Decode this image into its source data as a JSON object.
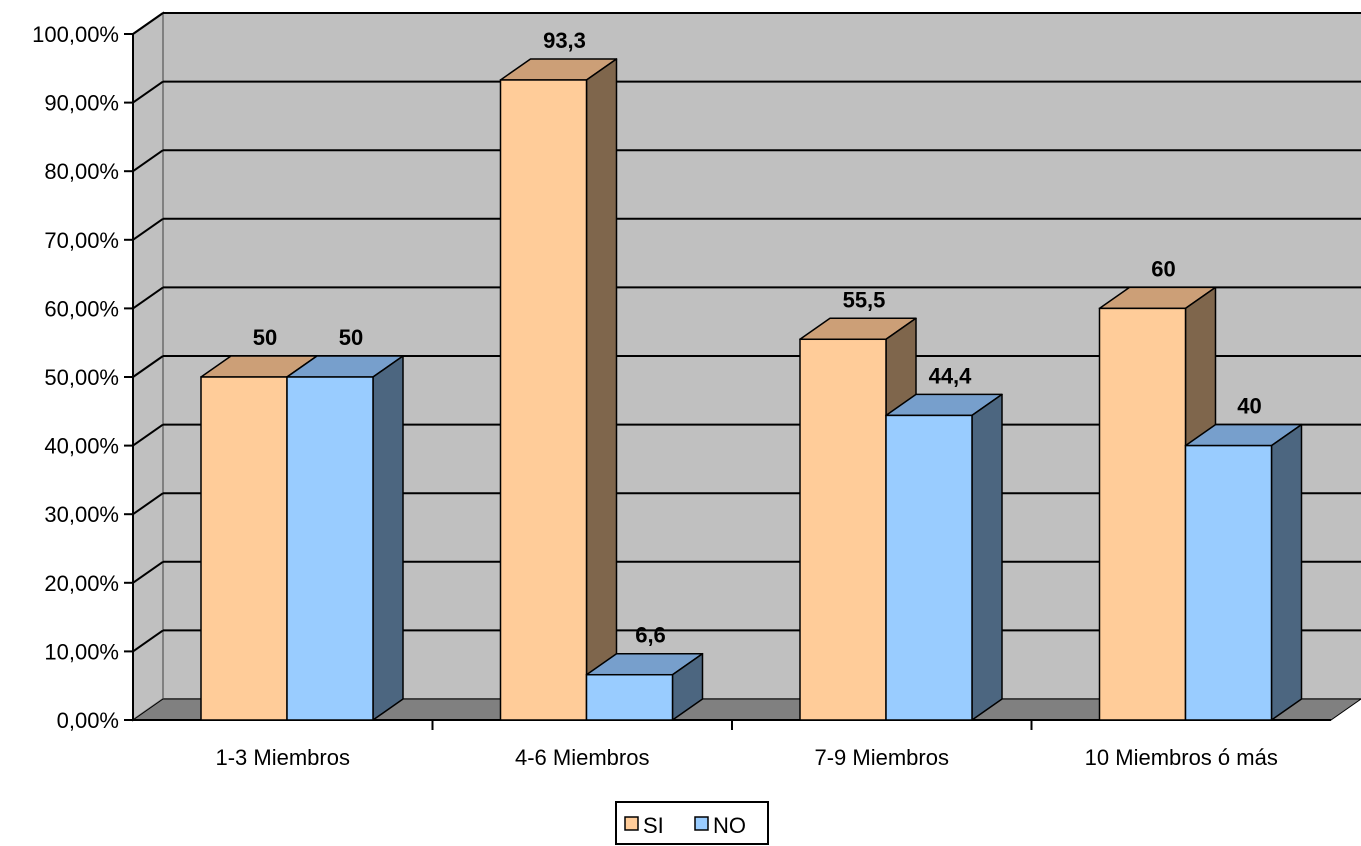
{
  "chart_data": {
    "type": "bar",
    "categories": [
      "1-3 Miembros",
      "4-6 Miembros",
      "7-9 Miembros",
      "10 Miembros ó más"
    ],
    "series": [
      {
        "name": "SI",
        "values": [
          50,
          93.3,
          55.5,
          60
        ],
        "labels": [
          "50",
          "93,3",
          "55,5",
          "60"
        ]
      },
      {
        "name": "NO",
        "values": [
          50,
          6.6,
          44.4,
          40
        ],
        "labels": [
          "50",
          "6,6",
          "44,4",
          "40"
        ]
      }
    ],
    "y_ticks": [
      "0,00%",
      "10,00%",
      "20,00%",
      "30,00%",
      "40,00%",
      "50,00%",
      "60,00%",
      "70,00%",
      "80,00%",
      "90,00%",
      "100,00%"
    ],
    "ylim": [
      0,
      100
    ],
    "grid": true,
    "three_d": true,
    "legend_position": "bottom",
    "colors": {
      "SI": {
        "front": "#ffcc99",
        "top": "#cc9f77",
        "side": "#7f664c"
      },
      "NO": {
        "front": "#99ccff",
        "top": "#779fcc",
        "side": "#4c6680"
      },
      "wall": "#c0c0c0",
      "floor": "#808080"
    }
  }
}
